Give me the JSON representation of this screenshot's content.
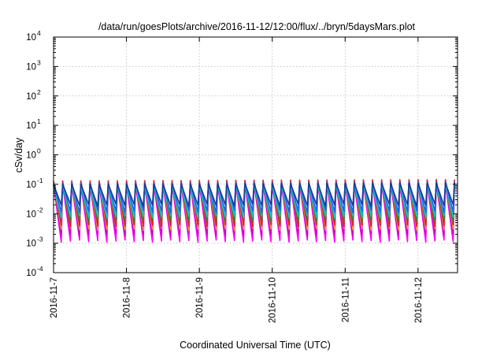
{
  "chart_data": {
    "type": "line",
    "title": "/data/run/goesPlots/archive/2016-11-12/12:00/flux/../bryn/5daysMars.plot",
    "xlabel": "Coordinated Universal Time (UTC)",
    "ylabel": "cSv/day",
    "yscale": "log",
    "grid": true,
    "xlim": [
      "2016-11-07 00:00",
      "2016-11-12 13:00"
    ],
    "ylim": [
      0.0001,
      10000
    ],
    "x_ticks": [
      "2016-11-7",
      "2016-11-8",
      "2016-11-9",
      "2016-11-10",
      "2016-11-11",
      "2016-11-12"
    ],
    "y_ticks": [
      {
        "base": "10",
        "exp": "4",
        "value": 10000
      },
      {
        "base": "10",
        "exp": "3",
        "value": 1000
      },
      {
        "base": "10",
        "exp": "2",
        "value": 100
      },
      {
        "base": "10",
        "exp": "1",
        "value": 10
      },
      {
        "base": "10",
        "exp": "0",
        "value": 1
      },
      {
        "base": "10",
        "exp": "-1",
        "value": 0.1
      },
      {
        "base": "10",
        "exp": "-2",
        "value": 0.01
      },
      {
        "base": "10",
        "exp": "-3",
        "value": 0.001
      },
      {
        "base": "10",
        "exp": "-4",
        "value": 0.0001
      }
    ],
    "cycles_per_day": 8,
    "series": [
      {
        "color": "#ff00ff",
        "peak": 0.1,
        "trough": 0.0012
      },
      {
        "color": "#c800c8",
        "peak": 0.1,
        "trough": 0.002
      },
      {
        "color": "#e8a030",
        "peak": 0.12,
        "trough": 0.003
      },
      {
        "color": "#e02020",
        "peak": 0.13,
        "trough": 0.004
      },
      {
        "color": "#2a8a2a",
        "peak": 0.1,
        "trough": 0.006
      },
      {
        "color": "#00c8c8",
        "peak": 0.09,
        "trough": 0.008
      },
      {
        "color": "#2060ff",
        "peak": 0.11,
        "trough": 0.012
      },
      {
        "color": "#1f3a93",
        "peak": 0.1,
        "trough": 0.02
      }
    ]
  }
}
